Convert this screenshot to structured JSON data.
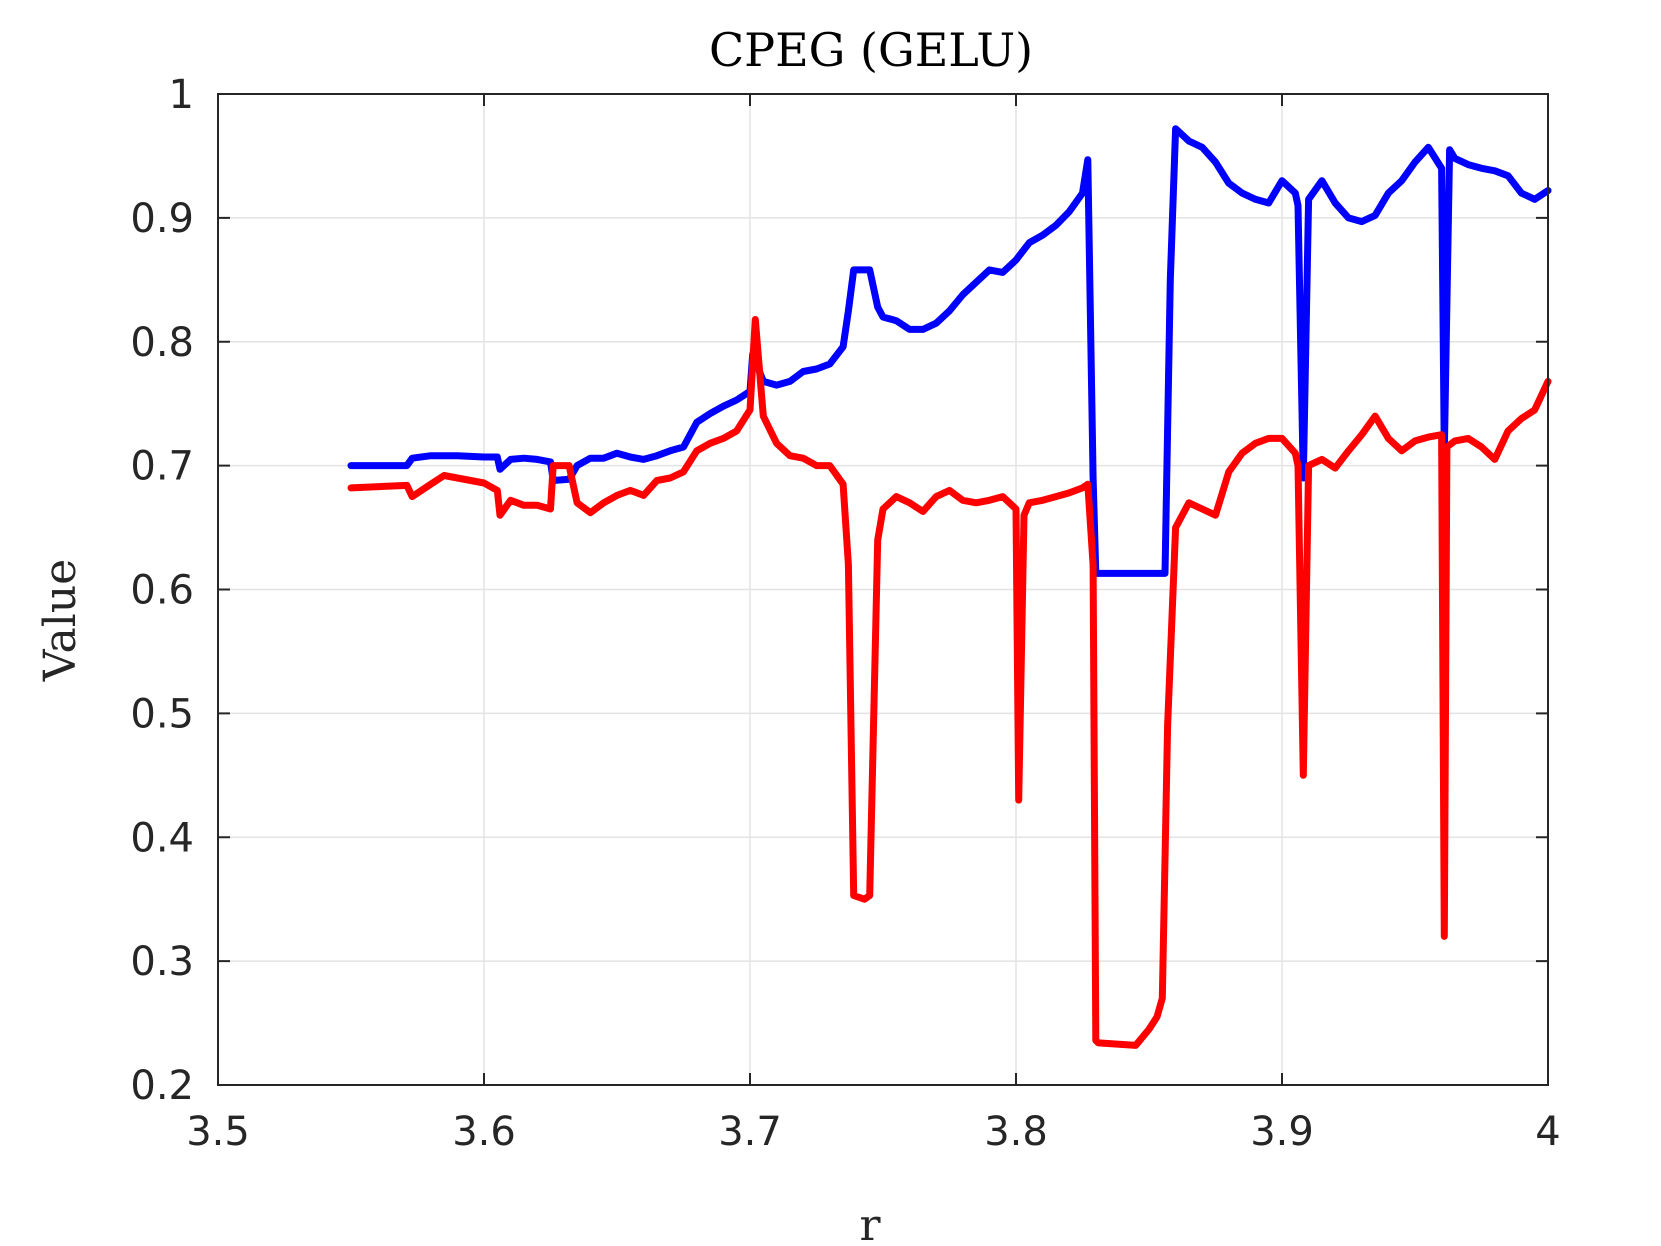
{
  "chart_data": {
    "type": "line",
    "title": "CPEG (GELU)",
    "xlabel": "r",
    "ylabel": "Value",
    "xlim": [
      3.5,
      4.0
    ],
    "ylim": [
      0.2,
      1.0
    ],
    "xticks": [
      3.5,
      3.6,
      3.7,
      3.8,
      3.9,
      4.0
    ],
    "xtick_labels": [
      "3.5",
      "3.6",
      "3.7",
      "3.8",
      "3.9",
      "4"
    ],
    "yticks": [
      0.2,
      0.3,
      0.4,
      0.5,
      0.6,
      0.7,
      0.8,
      0.9,
      1.0
    ],
    "ytick_labels": [
      "0.2",
      "0.3",
      "0.4",
      "0.5",
      "0.6",
      "0.7",
      "0.8",
      "0.9",
      "1"
    ],
    "grid": true,
    "legend": "none",
    "series": [
      {
        "color": "#0000ff",
        "x": [
          3.55,
          3.571,
          3.573,
          3.58,
          3.59,
          3.6,
          3.605,
          3.606,
          3.61,
          3.615,
          3.62,
          3.625,
          3.626,
          3.632,
          3.635,
          3.64,
          3.645,
          3.65,
          3.655,
          3.66,
          3.665,
          3.67,
          3.675,
          3.68,
          3.685,
          3.69,
          3.695,
          3.7,
          3.701,
          3.705,
          3.71,
          3.715,
          3.72,
          3.725,
          3.73,
          3.735,
          3.737,
          3.739,
          3.745,
          3.748,
          3.75,
          3.755,
          3.76,
          3.765,
          3.77,
          3.775,
          3.78,
          3.785,
          3.79,
          3.795,
          3.8,
          3.805,
          3.81,
          3.815,
          3.82,
          3.825,
          3.827,
          3.829,
          3.83,
          3.856,
          3.858,
          3.86,
          3.865,
          3.87,
          3.875,
          3.88,
          3.885,
          3.89,
          3.895,
          3.9,
          3.905,
          3.906,
          3.908,
          3.91,
          3.915,
          3.92,
          3.925,
          3.93,
          3.935,
          3.94,
          3.945,
          3.95,
          3.955,
          3.96,
          3.961,
          3.963,
          3.965,
          3.97,
          3.975,
          3.98,
          3.985,
          3.99,
          3.995,
          4.0
        ],
        "values": [
          0.7,
          0.7,
          0.706,
          0.708,
          0.708,
          0.707,
          0.707,
          0.697,
          0.705,
          0.706,
          0.705,
          0.703,
          0.688,
          0.689,
          0.7,
          0.706,
          0.706,
          0.71,
          0.707,
          0.705,
          0.708,
          0.712,
          0.715,
          0.735,
          0.742,
          0.748,
          0.753,
          0.76,
          0.79,
          0.768,
          0.765,
          0.768,
          0.776,
          0.778,
          0.782,
          0.796,
          0.825,
          0.858,
          0.858,
          0.828,
          0.82,
          0.817,
          0.81,
          0.81,
          0.815,
          0.825,
          0.838,
          0.848,
          0.858,
          0.856,
          0.866,
          0.88,
          0.886,
          0.894,
          0.905,
          0.92,
          0.947,
          0.69,
          0.613,
          0.613,
          0.85,
          0.972,
          0.962,
          0.957,
          0.945,
          0.928,
          0.92,
          0.915,
          0.912,
          0.93,
          0.92,
          0.91,
          0.69,
          0.915,
          0.93,
          0.912,
          0.9,
          0.897,
          0.902,
          0.92,
          0.93,
          0.945,
          0.957,
          0.94,
          0.71,
          0.955,
          0.948,
          0.943,
          0.94,
          0.938,
          0.934,
          0.92,
          0.915,
          0.922
        ]
      },
      {
        "color": "#ff0000",
        "x": [
          3.55,
          3.571,
          3.573,
          3.58,
          3.585,
          3.59,
          3.6,
          3.605,
          3.606,
          3.61,
          3.615,
          3.62,
          3.625,
          3.626,
          3.632,
          3.635,
          3.64,
          3.645,
          3.65,
          3.655,
          3.66,
          3.665,
          3.67,
          3.675,
          3.68,
          3.685,
          3.69,
          3.695,
          3.7,
          3.702,
          3.705,
          3.71,
          3.715,
          3.72,
          3.725,
          3.73,
          3.735,
          3.737,
          3.739,
          3.743,
          3.745,
          3.748,
          3.75,
          3.755,
          3.76,
          3.765,
          3.77,
          3.775,
          3.78,
          3.785,
          3.79,
          3.795,
          3.8,
          3.801,
          3.803,
          3.805,
          3.81,
          3.815,
          3.82,
          3.825,
          3.827,
          3.829,
          3.83,
          3.831,
          3.845,
          3.85,
          3.853,
          3.855,
          3.857,
          3.86,
          3.865,
          3.87,
          3.875,
          3.88,
          3.885,
          3.89,
          3.895,
          3.9,
          3.905,
          3.906,
          3.908,
          3.91,
          3.915,
          3.92,
          3.925,
          3.93,
          3.935,
          3.94,
          3.945,
          3.95,
          3.955,
          3.96,
          3.961,
          3.962,
          3.965,
          3.97,
          3.975,
          3.98,
          3.985,
          3.99,
          3.995,
          4.0
        ],
        "values": [
          0.682,
          0.684,
          0.675,
          0.685,
          0.692,
          0.69,
          0.686,
          0.68,
          0.66,
          0.672,
          0.668,
          0.668,
          0.665,
          0.7,
          0.7,
          0.67,
          0.662,
          0.67,
          0.676,
          0.68,
          0.676,
          0.688,
          0.69,
          0.695,
          0.712,
          0.718,
          0.722,
          0.728,
          0.745,
          0.818,
          0.74,
          0.718,
          0.708,
          0.706,
          0.7,
          0.7,
          0.685,
          0.62,
          0.353,
          0.35,
          0.353,
          0.64,
          0.665,
          0.675,
          0.67,
          0.663,
          0.675,
          0.68,
          0.672,
          0.67,
          0.672,
          0.675,
          0.665,
          0.43,
          0.66,
          0.67,
          0.672,
          0.675,
          0.678,
          0.682,
          0.685,
          0.62,
          0.236,
          0.234,
          0.232,
          0.245,
          0.255,
          0.27,
          0.49,
          0.65,
          0.67,
          0.665,
          0.66,
          0.695,
          0.71,
          0.718,
          0.722,
          0.722,
          0.71,
          0.7,
          0.45,
          0.7,
          0.705,
          0.698,
          0.712,
          0.725,
          0.74,
          0.722,
          0.712,
          0.72,
          0.723,
          0.725,
          0.32,
          0.715,
          0.72,
          0.722,
          0.715,
          0.705,
          0.728,
          0.738,
          0.745,
          0.768
        ]
      }
    ]
  }
}
